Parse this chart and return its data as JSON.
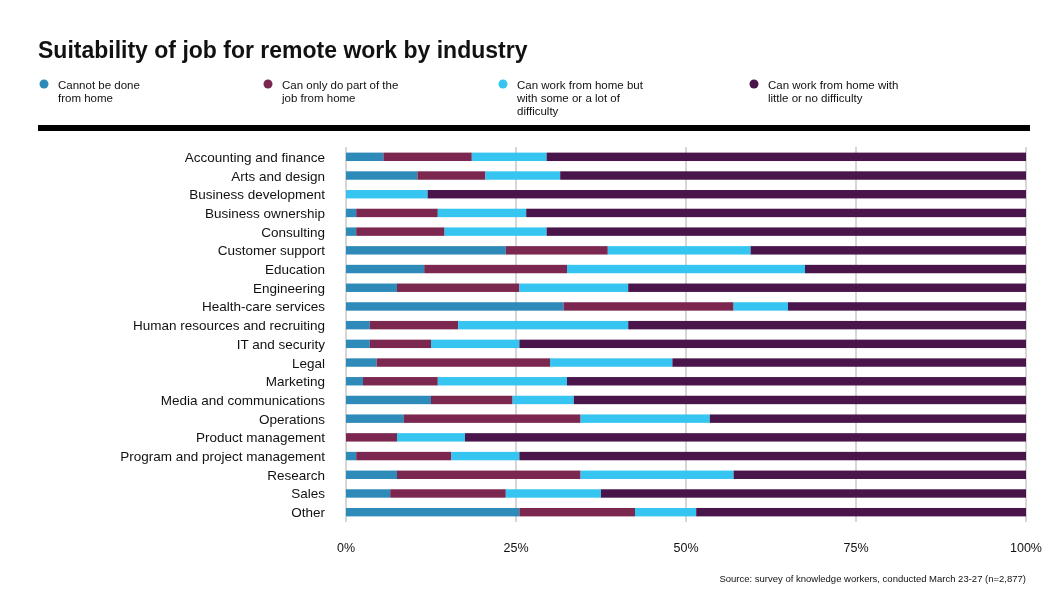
{
  "chart_data": {
    "type": "bar",
    "orientation": "horizontal",
    "stacked": true,
    "title": "Suitability of job for remote work by industry",
    "categories": [
      "Accounting and finance",
      "Arts and design",
      "Business development",
      "Business ownership",
      "Consulting",
      "Customer support",
      "Education",
      "Engineering",
      "Health-care services",
      "Human resources and recruiting",
      "IT and security",
      "Legal",
      "Marketing",
      "Media and communications",
      "Operations",
      "Product management",
      "Program and project management",
      "Research",
      "Sales",
      "Other"
    ],
    "series": [
      {
        "name": "Cannot be done from home",
        "color": "#2e8ab8",
        "values": [
          5.5,
          10.5,
          0,
          1.5,
          1.5,
          23.5,
          11.5,
          7.5,
          32,
          3.5,
          3.5,
          4.5,
          2.5,
          12.5,
          8.5,
          0,
          1.5,
          7.5,
          6.5,
          25.5
        ]
      },
      {
        "name": "Can only do part of the job from home",
        "color": "#7b2750",
        "values": [
          13,
          10,
          0,
          12,
          13,
          15,
          21,
          18,
          25,
          13,
          9,
          25.5,
          11,
          12,
          26,
          7.5,
          14,
          27,
          17,
          17
        ]
      },
      {
        "name": "Can work from home but with some or a lot of difficulty",
        "color": "#36c5f0",
        "values": [
          11,
          11,
          12,
          13,
          15,
          21,
          35,
          16,
          8,
          25,
          13,
          18,
          19,
          9,
          19,
          10,
          10,
          22.5,
          14,
          9
        ]
      },
      {
        "name": "Can work from home with little or no difficulty",
        "color": "#4a154b",
        "values": [
          70.5,
          68.5,
          88,
          73.5,
          70.5,
          40.5,
          32.5,
          58.5,
          35,
          58.5,
          74.5,
          52,
          67.5,
          66.5,
          46.5,
          82.5,
          74.5,
          43,
          62.5,
          48.5
        ]
      }
    ],
    "xlim": [
      0,
      100
    ],
    "xticks": [
      {
        "value": 0,
        "label": "0%"
      },
      {
        "value": 25,
        "label": "25%"
      },
      {
        "value": 50,
        "label": "50%"
      },
      {
        "value": 75,
        "label": "75%"
      },
      {
        "value": 100,
        "label": "100%"
      }
    ],
    "grid": "x",
    "legend": "top left",
    "annotations": [
      "Source: survey of knowledge workers, conducted March 23-27 (n=2,877)"
    ]
  }
}
